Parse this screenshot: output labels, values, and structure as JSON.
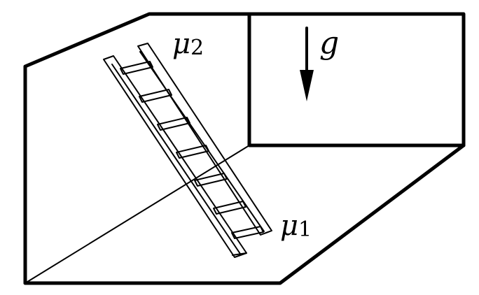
{
  "labels": {
    "mu2_symbol": "μ",
    "mu2_subscript": "2",
    "mu1_symbol": "μ",
    "mu1_subscript": "1",
    "gravity": "g"
  },
  "colors": {
    "line": "#000000",
    "background": "#ffffff"
  }
}
